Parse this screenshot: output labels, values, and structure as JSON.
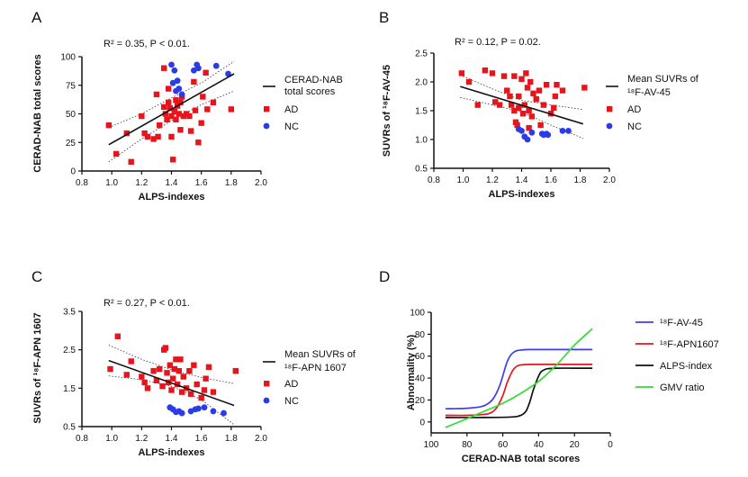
{
  "figure": {
    "panels": [
      "A",
      "B",
      "C",
      "D"
    ]
  },
  "chart_data": [
    {
      "panel": "A",
      "type": "scatter",
      "stat_text": "R² = 0.35, P < 0.01.",
      "xlabel": "ALPS-indexes",
      "ylabel": "CERAD-NAB total scores",
      "xlim": [
        0.8,
        2.0
      ],
      "ylim": [
        0,
        100
      ],
      "xticks": [
        "0.8",
        "1.0",
        "1.2",
        "1.4",
        "1.6",
        "1.8",
        "2.0"
      ],
      "yticks": [
        "0",
        "25",
        "50",
        "75",
        "100"
      ],
      "legend": {
        "line": "CERAD-NAB total scores",
        "series": [
          "AD",
          "NC"
        ]
      },
      "series": [
        {
          "name": "AD",
          "color": "#e8141b",
          "marker": "square",
          "points": [
            [
              0.98,
              40
            ],
            [
              1.03,
              15
            ],
            [
              1.1,
              33
            ],
            [
              1.13,
              8
            ],
            [
              1.2,
              48
            ],
            [
              1.22,
              33
            ],
            [
              1.24,
              30
            ],
            [
              1.28,
              28
            ],
            [
              1.3,
              67
            ],
            [
              1.31,
              30
            ],
            [
              1.32,
              40
            ],
            [
              1.35,
              90
            ],
            [
              1.35,
              56
            ],
            [
              1.36,
              50
            ],
            [
              1.37,
              45
            ],
            [
              1.38,
              72
            ],
            [
              1.38,
              60
            ],
            [
              1.39,
              55
            ],
            [
              1.4,
              48
            ],
            [
              1.4,
              30
            ],
            [
              1.41,
              10
            ],
            [
              1.42,
              52
            ],
            [
              1.43,
              62
            ],
            [
              1.43,
              45
            ],
            [
              1.44,
              57
            ],
            [
              1.45,
              50
            ],
            [
              1.46,
              60
            ],
            [
              1.46,
              36
            ],
            [
              1.47,
              65
            ],
            [
              1.48,
              48
            ],
            [
              1.5,
              50
            ],
            [
              1.52,
              48
            ],
            [
              1.53,
              35
            ],
            [
              1.55,
              78
            ],
            [
              1.56,
              53
            ],
            [
              1.58,
              25
            ],
            [
              1.6,
              42
            ],
            [
              1.61,
              65
            ],
            [
              1.63,
              86
            ],
            [
              1.64,
              54
            ],
            [
              1.68,
              60
            ],
            [
              1.8,
              54
            ]
          ]
        },
        {
          "name": "NC",
          "color": "#2b3be8",
          "marker": "circle",
          "points": [
            [
              1.4,
              93
            ],
            [
              1.41,
              77
            ],
            [
              1.42,
              88
            ],
            [
              1.43,
              70
            ],
            [
              1.44,
              79
            ],
            [
              1.45,
              72
            ],
            [
              1.47,
              67
            ],
            [
              1.55,
              88
            ],
            [
              1.57,
              93
            ],
            [
              1.58,
              90
            ],
            [
              1.7,
              92
            ],
            [
              1.78,
              85
            ]
          ]
        }
      ],
      "fit": {
        "x": [
          0.98,
          1.82
        ],
        "y": [
          23,
          85
        ]
      },
      "ci_upper": {
        "x": [
          0.98,
          1.2,
          1.4,
          1.6,
          1.82
        ],
        "y": [
          38,
          50,
          64,
          77,
          96
        ]
      },
      "ci_lower": {
        "x": [
          0.98,
          1.2,
          1.4,
          1.6,
          1.82
        ],
        "y": [
          8,
          28,
          44,
          58,
          70
        ]
      }
    },
    {
      "panel": "B",
      "type": "scatter",
      "stat_text": "R² = 0.12, P = 0.02.",
      "xlabel": "ALPS-indexes",
      "ylabel": "SUVRs of ¹⁸F-AV-45",
      "xlim": [
        0.8,
        2.0
      ],
      "ylim": [
        0.5,
        2.5
      ],
      "xticks": [
        "0.8",
        "1.0",
        "1.2",
        "1.4",
        "1.6",
        "1.8",
        "2.0"
      ],
      "yticks": [
        "0.5",
        "1.0",
        "1.5",
        "2.0",
        "2.5"
      ],
      "legend": {
        "line": [
          "Mean SUVRs of",
          "¹⁸F-AV-45"
        ],
        "series": [
          "AD",
          "NC"
        ]
      },
      "series": [
        {
          "name": "AD",
          "color": "#e8141b",
          "marker": "square",
          "points": [
            [
              0.99,
              2.15
            ],
            [
              1.04,
              2.0
            ],
            [
              1.1,
              1.6
            ],
            [
              1.15,
              2.2
            ],
            [
              1.2,
              2.15
            ],
            [
              1.22,
              1.65
            ],
            [
              1.25,
              1.6
            ],
            [
              1.28,
              2.1
            ],
            [
              1.3,
              1.85
            ],
            [
              1.32,
              1.75
            ],
            [
              1.33,
              1.6
            ],
            [
              1.35,
              2.1
            ],
            [
              1.35,
              1.5
            ],
            [
              1.36,
              1.3
            ],
            [
              1.38,
              1.75
            ],
            [
              1.4,
              2.05
            ],
            [
              1.41,
              1.45
            ],
            [
              1.42,
              1.6
            ],
            [
              1.43,
              2.15
            ],
            [
              1.44,
              1.9
            ],
            [
              1.45,
              1.5
            ],
            [
              1.46,
              2.0
            ],
            [
              1.47,
              1.4
            ],
            [
              1.48,
              1.8
            ],
            [
              1.5,
              1.7
            ],
            [
              1.52,
              1.85
            ],
            [
              1.53,
              1.25
            ],
            [
              1.55,
              1.6
            ],
            [
              1.57,
              1.95
            ],
            [
              1.6,
              1.45
            ],
            [
              1.62,
              1.55
            ],
            [
              1.63,
              1.75
            ],
            [
              1.64,
              1.95
            ],
            [
              1.68,
              1.85
            ],
            [
              1.83,
              1.9
            ],
            [
              1.38,
              1.55
            ],
            [
              1.37,
              1.25
            ],
            [
              1.45,
              1.2
            ]
          ]
        },
        {
          "name": "NC",
          "color": "#2b3be8",
          "marker": "circle",
          "points": [
            [
              1.38,
              1.18
            ],
            [
              1.4,
              1.15
            ],
            [
              1.42,
              1.05
            ],
            [
              1.44,
              1.0
            ],
            [
              1.47,
              1.12
            ],
            [
              1.54,
              1.1
            ],
            [
              1.55,
              1.08
            ],
            [
              1.57,
              1.1
            ],
            [
              1.58,
              1.08
            ],
            [
              1.68,
              1.15
            ],
            [
              1.72,
              1.15
            ]
          ]
        }
      ],
      "fit": {
        "x": [
          0.98,
          1.82
        ],
        "y": [
          1.92,
          1.27
        ]
      },
      "ci_upper": {
        "x": [
          0.98,
          1.2,
          1.4,
          1.6,
          1.82
        ],
        "y": [
          2.12,
          1.88,
          1.68,
          1.6,
          1.52
        ]
      },
      "ci_lower": {
        "x": [
          0.98,
          1.2,
          1.4,
          1.6,
          1.82
        ],
        "y": [
          1.73,
          1.6,
          1.48,
          1.25,
          1.02
        ]
      }
    },
    {
      "panel": "C",
      "type": "scatter",
      "stat_text": "R² = 0.27, P < 0.01.",
      "xlabel": "ALPS-indexes",
      "ylabel": "SUVRs of ¹⁸F-APN 1607",
      "xlim": [
        0.8,
        2.0
      ],
      "ylim": [
        0.5,
        3.5
      ],
      "xticks": [
        "0.8",
        "1.0",
        "1.2",
        "1.4",
        "1.6",
        "1.8",
        "2.0"
      ],
      "yticks": [
        "0.5",
        "1.5",
        "2.5",
        "3.5"
      ],
      "legend": {
        "line": [
          "Mean SUVRs of",
          "¹⁸F-APN 1607"
        ],
        "series": [
          "AD",
          "NC"
        ]
      },
      "series": [
        {
          "name": "AD",
          "color": "#e8141b",
          "marker": "square",
          "points": [
            [
              0.99,
              2.0
            ],
            [
              1.04,
              2.85
            ],
            [
              1.1,
              1.85
            ],
            [
              1.13,
              2.2
            ],
            [
              1.2,
              1.8
            ],
            [
              1.22,
              1.65
            ],
            [
              1.24,
              1.5
            ],
            [
              1.28,
              1.95
            ],
            [
              1.3,
              1.7
            ],
            [
              1.32,
              2.0
            ],
            [
              1.34,
              1.55
            ],
            [
              1.35,
              2.5
            ],
            [
              1.36,
              2.55
            ],
            [
              1.37,
              1.9
            ],
            [
              1.38,
              1.65
            ],
            [
              1.39,
              2.1
            ],
            [
              1.4,
              1.45
            ],
            [
              1.41,
              1.75
            ],
            [
              1.42,
              2.0
            ],
            [
              1.43,
              2.25
            ],
            [
              1.44,
              1.6
            ],
            [
              1.45,
              1.95
            ],
            [
              1.46,
              2.25
            ],
            [
              1.47,
              1.4
            ],
            [
              1.48,
              1.8
            ],
            [
              1.5,
              1.5
            ],
            [
              1.52,
              1.95
            ],
            [
              1.53,
              1.35
            ],
            [
              1.55,
              2.1
            ],
            [
              1.57,
              1.6
            ],
            [
              1.6,
              1.25
            ],
            [
              1.62,
              1.45
            ],
            [
              1.63,
              1.75
            ],
            [
              1.65,
              2.05
            ],
            [
              1.68,
              1.4
            ],
            [
              1.83,
              1.95
            ]
          ]
        },
        {
          "name": "NC",
          "color": "#2b3be8",
          "marker": "circle",
          "points": [
            [
              1.39,
              1.0
            ],
            [
              1.41,
              0.95
            ],
            [
              1.43,
              0.88
            ],
            [
              1.45,
              0.9
            ],
            [
              1.47,
              0.85
            ],
            [
              1.53,
              0.9
            ],
            [
              1.56,
              0.95
            ],
            [
              1.58,
              0.97
            ],
            [
              1.62,
              1.0
            ],
            [
              1.68,
              0.9
            ],
            [
              1.75,
              0.85
            ]
          ]
        }
      ],
      "fit": {
        "x": [
          0.98,
          1.82
        ],
        "y": [
          2.22,
          1.05
        ]
      },
      "ci_upper": {
        "x": [
          0.98,
          1.2,
          1.4,
          1.6,
          1.82
        ],
        "y": [
          2.62,
          2.25,
          1.98,
          1.78,
          1.62
        ]
      },
      "ci_lower": {
        "x": [
          0.98,
          1.2,
          1.4,
          1.6,
          1.82
        ],
        "y": [
          1.82,
          1.72,
          1.55,
          1.2,
          0.55
        ]
      }
    },
    {
      "panel": "D",
      "type": "line",
      "xlabel": "CERAD-NAB total scores",
      "ylabel": "Abnormality (%)",
      "xlim": [
        100,
        0
      ],
      "ylim": [
        -10,
        100
      ],
      "xticks": [
        "100",
        "80",
        "60",
        "40",
        "20",
        "0"
      ],
      "yticks": [
        "0",
        "20",
        "40",
        "60",
        "80",
        "100"
      ],
      "series": [
        {
          "name": "¹⁸F-AV-45",
          "color": "#3e3ef0",
          "x": [
            92,
            80,
            72,
            68,
            65,
            62,
            60,
            58,
            56,
            54,
            52,
            50,
            45,
            30,
            10
          ],
          "y": [
            12,
            12.5,
            14,
            17,
            22,
            32,
            42,
            53,
            60,
            63.5,
            65,
            65.5,
            66,
            66,
            66
          ]
        },
        {
          "name": "¹⁸F-APN1607",
          "color": "#e8141b",
          "x": [
            92,
            80,
            70,
            66,
            63,
            60,
            58,
            56,
            54,
            52,
            50,
            45,
            30,
            10
          ],
          "y": [
            6,
            6,
            7,
            9,
            14,
            24,
            34,
            42,
            48,
            51,
            52,
            52.5,
            52.5,
            52.5
          ]
        },
        {
          "name": "ALPS-index",
          "color": "#111111",
          "x": [
            92,
            70,
            55,
            50,
            47,
            45,
            43,
            41,
            39,
            37,
            35,
            30,
            20,
            10
          ],
          "y": [
            4,
            4,
            4.5,
            6,
            10,
            18,
            29,
            38,
            45,
            47.5,
            48.5,
            49,
            49,
            49
          ]
        },
        {
          "name": "GMV ratio",
          "color": "#33dd33",
          "x": [
            92,
            80,
            70,
            60,
            50,
            40,
            30,
            20,
            10
          ],
          "y": [
            -5,
            3,
            10,
            17,
            26,
            37,
            52,
            70,
            85
          ]
        }
      ]
    }
  ]
}
